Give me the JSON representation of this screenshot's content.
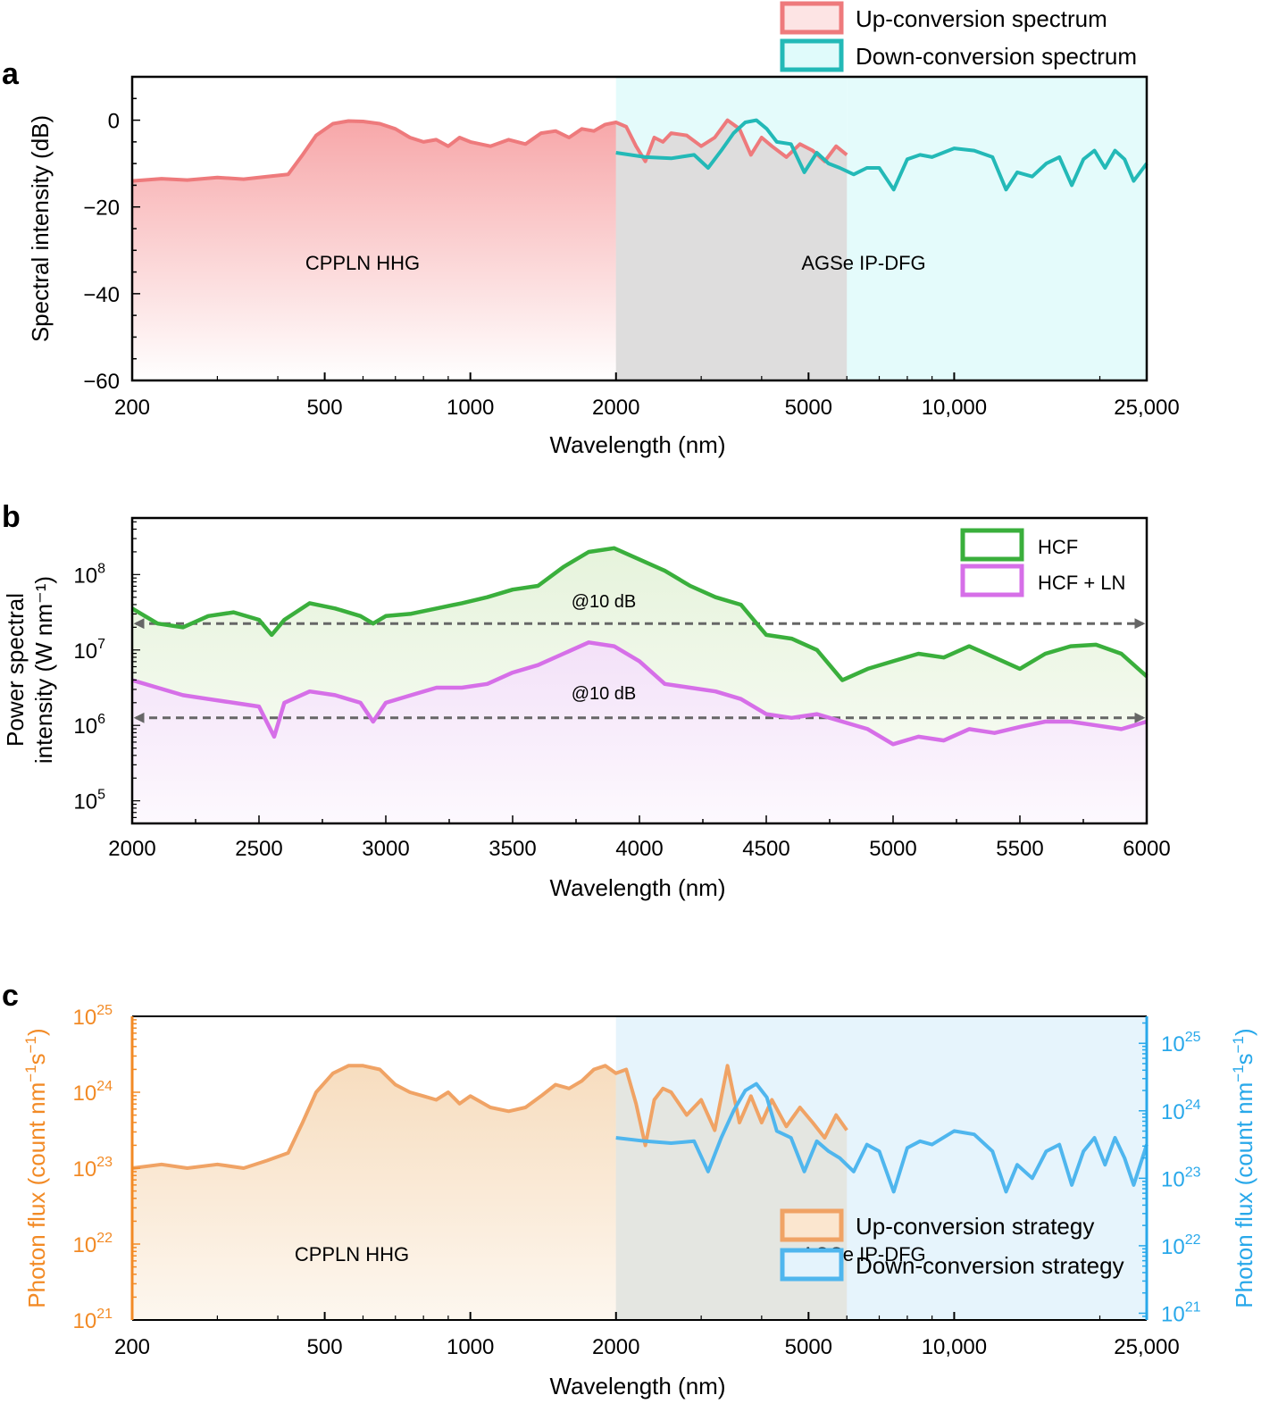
{
  "colors": {
    "up_line": "#ee7a7c",
    "down_line": "#23b9b7",
    "hcf": "#3aaf3c",
    "hcf_ln": "#d66fe8",
    "up_strategy": "#f0a365",
    "down_strategy": "#4fb6ee",
    "left_axis": "#f28a25",
    "right_axis": "#28a8ea",
    "arrow": "#666666"
  },
  "chart_data": [
    {
      "panel": "a",
      "type": "area",
      "xlabel": "Wavelength (nm)",
      "ylabel": "Spectral intensity (dB)",
      "xscale": "log",
      "xlim": [
        200,
        25000
      ],
      "ylim": [
        -60,
        10
      ],
      "xticks": [
        200,
        500,
        1000,
        2000,
        5000,
        10000,
        25000
      ],
      "xtick_labels": [
        "200",
        "500",
        "1000",
        "2000",
        "5000",
        "10,000",
        "25,000"
      ],
      "yticks": [
        0,
        -20,
        -40,
        -60
      ],
      "ytick_labels": [
        "0",
        "−20",
        "−40",
        "−60"
      ],
      "legend_position": "top-right",
      "annotations": [
        "CPPLN HHG",
        "AGSe IP-DFG"
      ],
      "series": [
        {
          "name": "Up-conversion spectrum",
          "x": [
            200,
            230,
            260,
            300,
            340,
            380,
            420,
            450,
            480,
            520,
            560,
            600,
            650,
            700,
            750,
            800,
            850,
            900,
            950,
            1000,
            1100,
            1200,
            1300,
            1400,
            1500,
            1600,
            1700,
            1800,
            1900,
            2000,
            2100,
            2200,
            2300,
            2400,
            2500,
            2600,
            2800,
            3000,
            3200,
            3400,
            3600,
            3800,
            4000,
            4200,
            4500,
            4800,
            5100,
            5400,
            5700,
            6000
          ],
          "values": [
            -14,
            -13.5,
            -13.8,
            -13.2,
            -13.6,
            -13,
            -12.5,
            -8,
            -3.5,
            -0.8,
            -0.2,
            -0.3,
            -0.8,
            -2,
            -4,
            -5,
            -4.5,
            -6,
            -4,
            -5,
            -6,
            -4.5,
            -5.5,
            -3,
            -2.5,
            -4,
            -2,
            -2.5,
            -1,
            -0.5,
            -1.5,
            -6,
            -9.5,
            -4,
            -5,
            -3,
            -3.5,
            -6,
            -4,
            0,
            -2,
            -8,
            -4,
            -6,
            -8.5,
            -5.5,
            -7,
            -9.5,
            -6,
            -8
          ]
        },
        {
          "name": "Down-conversion spectrum",
          "x": [
            2000,
            2300,
            2600,
            2900,
            3100,
            3300,
            3500,
            3700,
            3900,
            4100,
            4300,
            4600,
            4900,
            5200,
            5500,
            5800,
            6200,
            6600,
            7000,
            7500,
            8000,
            8500,
            9000,
            10000,
            11000,
            12000,
            12800,
            13500,
            14500,
            15500,
            16500,
            17500,
            18500,
            19500,
            20500,
            21500,
            22500,
            23500,
            25000
          ],
          "values": [
            -7.5,
            -8.5,
            -8.8,
            -8,
            -11,
            -7,
            -3,
            -0.5,
            0,
            -2,
            -5,
            -5.5,
            -12,
            -7.5,
            -10,
            -11,
            -12.5,
            -11,
            -11,
            -16,
            -9,
            -8,
            -8.5,
            -6.5,
            -7,
            -8.5,
            -16,
            -12,
            -13,
            -10,
            -8.5,
            -15,
            -9,
            -7,
            -11,
            -7,
            -9,
            -14,
            -10
          ]
        }
      ]
    },
    {
      "panel": "b",
      "type": "area",
      "xlabel": "Wavelength (nm)",
      "ylabel_line1": "Power spectral",
      "ylabel_line2": "intensity (W nm⁻¹)",
      "yscale": "log",
      "xlim": [
        2000,
        6000
      ],
      "ylim_exponent": [
        4.7,
        8.75
      ],
      "xticks": [
        2000,
        2500,
        3000,
        3500,
        4000,
        4500,
        5000,
        5500,
        6000
      ],
      "xtick_labels": [
        "2000",
        "2500",
        "3000",
        "3500",
        "4000",
        "4500",
        "5000",
        "5500",
        "6000"
      ],
      "yticks_exponent": [
        5,
        6,
        7,
        8
      ],
      "ytick_base": "10",
      "ytick_exponents": [
        "5",
        "6",
        "7",
        "8"
      ],
      "legend_position": "top-right",
      "annotations": [
        {
          "text": "@10 dB",
          "level_exponent": 7.35
        },
        {
          "text": "@10 dB",
          "level_exponent": 6.1
        }
      ],
      "series": [
        {
          "name": "HCF",
          "x": [
            2000,
            2100,
            2200,
            2300,
            2400,
            2500,
            2550,
            2600,
            2700,
            2800,
            2900,
            2950,
            3000,
            3100,
            3200,
            3300,
            3400,
            3500,
            3600,
            3700,
            3800,
            3900,
            4000,
            4100,
            4200,
            4300,
            4400,
            4500,
            4600,
            4700,
            4800,
            4900,
            5000,
            5100,
            5200,
            5300,
            5400,
            5500,
            5600,
            5700,
            5800,
            5900,
            6000
          ],
          "values_exponent": [
            7.55,
            7.35,
            7.3,
            7.45,
            7.5,
            7.4,
            7.2,
            7.4,
            7.62,
            7.55,
            7.45,
            7.35,
            7.45,
            7.48,
            7.55,
            7.62,
            7.7,
            7.8,
            7.85,
            8.1,
            8.3,
            8.35,
            8.2,
            8.05,
            7.85,
            7.7,
            7.6,
            7.2,
            7.15,
            7.0,
            6.6,
            6.75,
            6.85,
            6.95,
            6.9,
            7.05,
            6.9,
            6.75,
            6.95,
            7.05,
            7.07,
            6.95,
            6.65
          ]
        },
        {
          "name": "HCF + LN",
          "x": [
            2000,
            2100,
            2200,
            2300,
            2400,
            2500,
            2560,
            2600,
            2700,
            2800,
            2900,
            2950,
            3000,
            3100,
            3200,
            3300,
            3400,
            3500,
            3600,
            3700,
            3800,
            3900,
            4000,
            4100,
            4200,
            4300,
            4400,
            4500,
            4600,
            4700,
            4800,
            4900,
            5000,
            5100,
            5200,
            5300,
            5400,
            5500,
            5600,
            5700,
            5800,
            5900,
            6000
          ],
          "values_exponent": [
            6.6,
            6.5,
            6.4,
            6.35,
            6.3,
            6.25,
            5.85,
            6.3,
            6.45,
            6.4,
            6.3,
            6.05,
            6.3,
            6.4,
            6.5,
            6.5,
            6.55,
            6.7,
            6.8,
            6.95,
            7.1,
            7.05,
            6.85,
            6.55,
            6.5,
            6.45,
            6.35,
            6.15,
            6.1,
            6.15,
            6.05,
            5.95,
            5.75,
            5.85,
            5.8,
            5.95,
            5.9,
            5.98,
            6.05,
            6.05,
            6.0,
            5.95,
            6.05
          ]
        }
      ]
    },
    {
      "panel": "c",
      "type": "area",
      "xlabel": "Wavelength (nm)",
      "ylabel_left": "Photon flux (count nm⁻¹s⁻¹)",
      "ylabel_right": "Photon flux (count nm⁻¹s⁻¹)",
      "xscale": "log",
      "yscale": "log",
      "xlim": [
        200,
        25000
      ],
      "ylim_left_exponent": [
        21,
        25
      ],
      "ylim_right_exponent": [
        20.9,
        25.4
      ],
      "xticks": [
        200,
        500,
        1000,
        2000,
        5000,
        10000,
        25000
      ],
      "xtick_labels": [
        "200",
        "500",
        "1000",
        "2000",
        "5000",
        "10,000",
        "25,000"
      ],
      "ytick_base": "10",
      "yticks_left_exponent": [
        "21",
        "22",
        "23",
        "24",
        "25"
      ],
      "yticks_right_exponent": [
        "21",
        "22",
        "23",
        "24",
        "25"
      ],
      "legend_position": "top-right",
      "annotations": [
        "CPPLN HHG",
        "AGSe IP-DFG"
      ],
      "series": [
        {
          "name": "Up-conversion strategy",
          "axis": "left",
          "x": [
            200,
            230,
            260,
            300,
            340,
            380,
            420,
            450,
            480,
            520,
            560,
            600,
            650,
            700,
            750,
            800,
            850,
            900,
            950,
            1000,
            1100,
            1200,
            1300,
            1400,
            1500,
            1600,
            1700,
            1800,
            1900,
            2000,
            2100,
            2200,
            2300,
            2400,
            2500,
            2600,
            2800,
            3000,
            3200,
            3400,
            3600,
            3800,
            4000,
            4200,
            4500,
            4800,
            5100,
            5400,
            5700,
            6000
          ],
          "values_exponent": [
            23.0,
            23.05,
            23.0,
            23.05,
            23.0,
            23.1,
            23.2,
            23.6,
            24.0,
            24.25,
            24.35,
            24.35,
            24.3,
            24.1,
            24.0,
            23.95,
            23.9,
            24.0,
            23.85,
            23.95,
            23.8,
            23.75,
            23.8,
            23.95,
            24.1,
            24.05,
            24.15,
            24.3,
            24.35,
            24.25,
            24.3,
            23.85,
            23.3,
            23.9,
            24.05,
            24.0,
            23.7,
            23.9,
            23.5,
            24.35,
            23.6,
            23.95,
            23.6,
            23.9,
            23.55,
            23.8,
            23.6,
            23.4,
            23.7,
            23.5
          ]
        },
        {
          "name": "Down-conversion strategy",
          "axis": "right",
          "x": [
            2000,
            2300,
            2600,
            2900,
            3100,
            3300,
            3500,
            3700,
            3900,
            4100,
            4300,
            4600,
            4900,
            5200,
            5500,
            5800,
            6200,
            6600,
            7000,
            7500,
            8000,
            8500,
            9000,
            10000,
            11000,
            12000,
            12800,
            13500,
            14500,
            15500,
            16500,
            17500,
            18500,
            19500,
            20500,
            21500,
            22500,
            23500,
            25000
          ],
          "values_exponent": [
            23.6,
            23.55,
            23.52,
            23.55,
            23.1,
            23.6,
            24.0,
            24.3,
            24.4,
            24.2,
            23.7,
            23.6,
            23.1,
            23.55,
            23.4,
            23.3,
            23.1,
            23.5,
            23.4,
            22.8,
            23.45,
            23.55,
            23.5,
            23.7,
            23.65,
            23.4,
            22.8,
            23.2,
            23.0,
            23.4,
            23.5,
            22.9,
            23.4,
            23.6,
            23.2,
            23.6,
            23.3,
            22.9,
            23.5
          ]
        }
      ]
    }
  ]
}
